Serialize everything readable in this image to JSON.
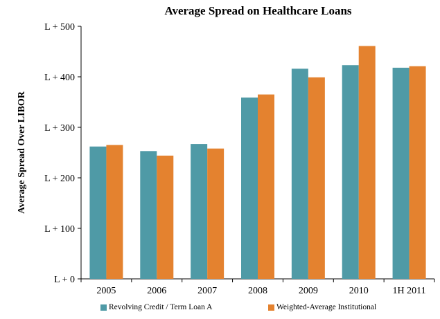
{
  "colors": {
    "revolving": "#4f9aa6",
    "institutional": "#e4822f"
  },
  "chart_data": {
    "type": "bar",
    "title": "Average Spread on Healthcare Loans",
    "xlabel": "",
    "ylabel": "Average Spread Over LIBOR",
    "categories": [
      "2005",
      "2006",
      "2007",
      "2008",
      "2009",
      "2010",
      "1H 2011"
    ],
    "ylim": [
      0,
      500
    ],
    "yticks": [
      0,
      100,
      200,
      300,
      400,
      500
    ],
    "ytick_labels": [
      "L + 0",
      "L + 100",
      "L + 200",
      "L + 300",
      "L + 400",
      "L + 500"
    ],
    "grid": false,
    "legend_position": "bottom",
    "series": [
      {
        "name": "Revolving Credit / Term Loan A",
        "values": [
          262,
          253,
          267,
          359,
          416,
          423,
          418
        ]
      },
      {
        "name": "Weighted-Average Institutional",
        "values": [
          265,
          244,
          258,
          365,
          399,
          461,
          421
        ]
      }
    ]
  }
}
